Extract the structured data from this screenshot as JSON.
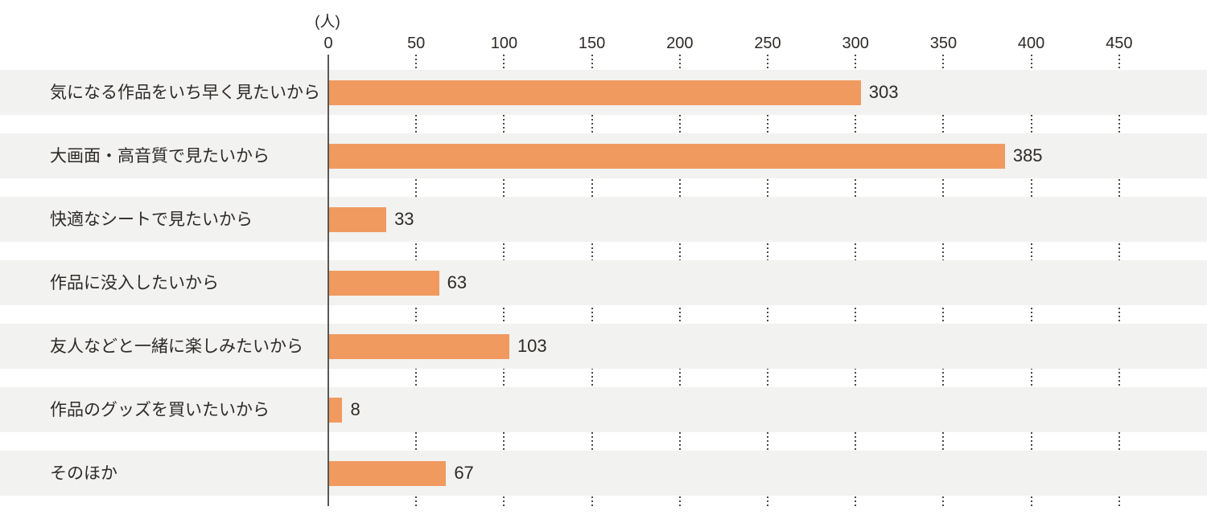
{
  "chart_data": {
    "type": "bar",
    "orientation": "horizontal",
    "title": "",
    "unit_label": "(人)",
    "categories": [
      "気になる作品をいち早く見たいから",
      "大画面・高音質で見たいから",
      "快適なシートで見たいから",
      "作品に没入したいから",
      "友人などと一緒に楽しみたいから",
      "作品のグッズを買いたいから",
      "そのほか"
    ],
    "values": [
      303,
      385,
      33,
      63,
      103,
      8,
      67
    ],
    "x_ticks": [
      0,
      50,
      100,
      150,
      200,
      250,
      300,
      350,
      400,
      450
    ],
    "xlim": [
      0,
      500
    ],
    "grid": "dotted-vertical-in-row-gaps",
    "legend": "none",
    "colors": {
      "bar": "#f09a60",
      "row_band": "#f2f2f0",
      "axis_line": "#595757",
      "gridline_dots": "#4c4846",
      "text": "#2e2a28",
      "background": "#ffffff"
    }
  }
}
